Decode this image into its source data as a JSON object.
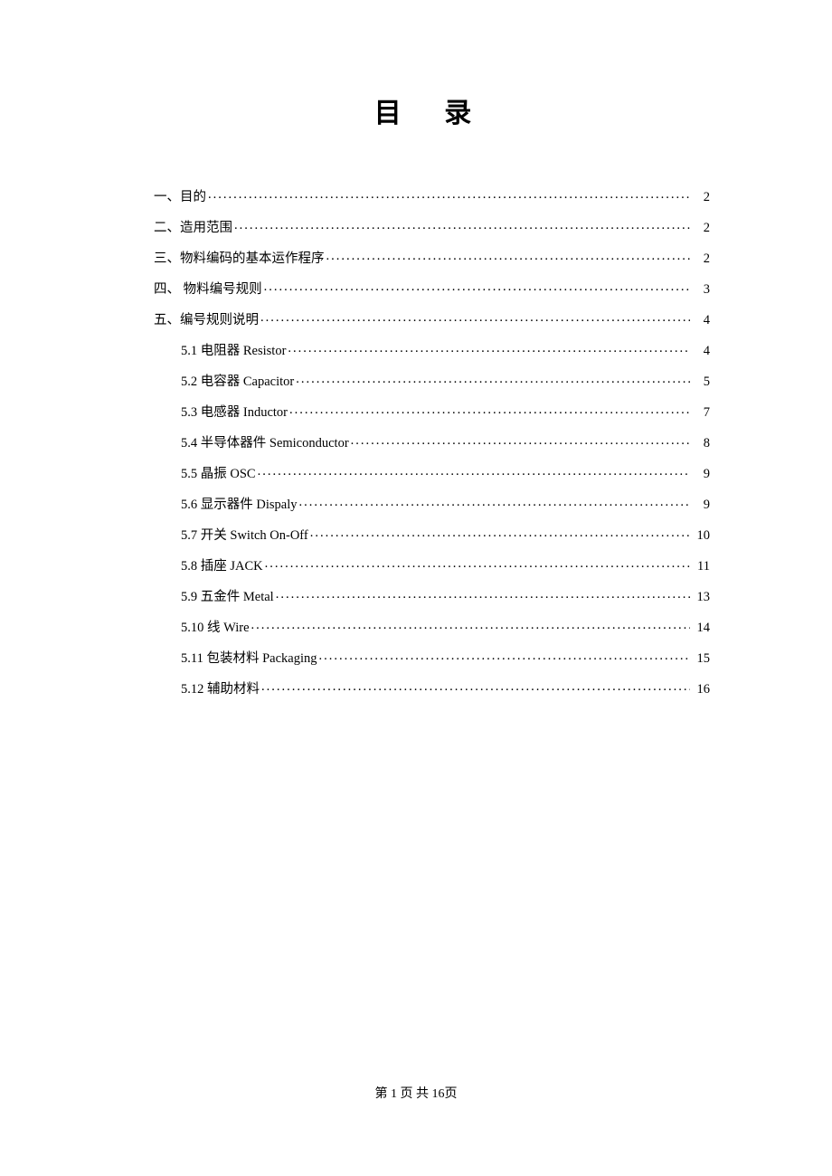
{
  "title": "目 录",
  "entries": [
    {
      "label": "一、目的 ",
      "page": "2",
      "sub": false
    },
    {
      "label": "二、造用范围 ",
      "page": "2",
      "sub": false
    },
    {
      "label": "三、物料编码的基本运作程序",
      "page": "2",
      "sub": false
    },
    {
      "label": "四、  物料编号规则",
      "page": "3",
      "sub": false
    },
    {
      "label": "五、编号规则说明",
      "page": "4",
      "sub": false
    },
    {
      "label": "5.1  电阻器 Resistor",
      "page": "4",
      "sub": true
    },
    {
      "label": "5.2  电容器 Capacitor",
      "page": "5",
      "sub": true
    },
    {
      "label": "5.3  电感器 Inductor",
      "page": "7",
      "sub": true
    },
    {
      "label": "5.4  半导体器件   Semiconductor ",
      "page": "8",
      "sub": true
    },
    {
      "label": "5.5  晶振 OSC",
      "page": "9",
      "sub": true
    },
    {
      "label": "5.6 显示器件 Dispaly",
      "page": "9",
      "sub": true
    },
    {
      "label": "5.7 开关 Switch    On-Off",
      "page": "10",
      "sub": true
    },
    {
      "label": "5.8 插座 JACK",
      "page": " 11",
      "sub": true
    },
    {
      "label": "5.9 五金件 Metal",
      "page": "13",
      "sub": true
    },
    {
      "label": "5.10 线 Wire",
      "page": "14",
      "sub": true
    },
    {
      "label": "5.11 包装材料 Packaging",
      "page": "15",
      "sub": true
    },
    {
      "label": "5.12 辅助材料",
      "page": "16",
      "sub": true
    }
  ],
  "footer": {
    "prefix": "第 ",
    "current": "1",
    "middle": " 页 共 ",
    "total": "16",
    "suffix": "页"
  },
  "colors": {
    "background": "#ffffff",
    "text": "#000000"
  },
  "fonts": {
    "body": "SimSun",
    "title_size": 30,
    "entry_size": 14.5,
    "footer_size": 14
  }
}
